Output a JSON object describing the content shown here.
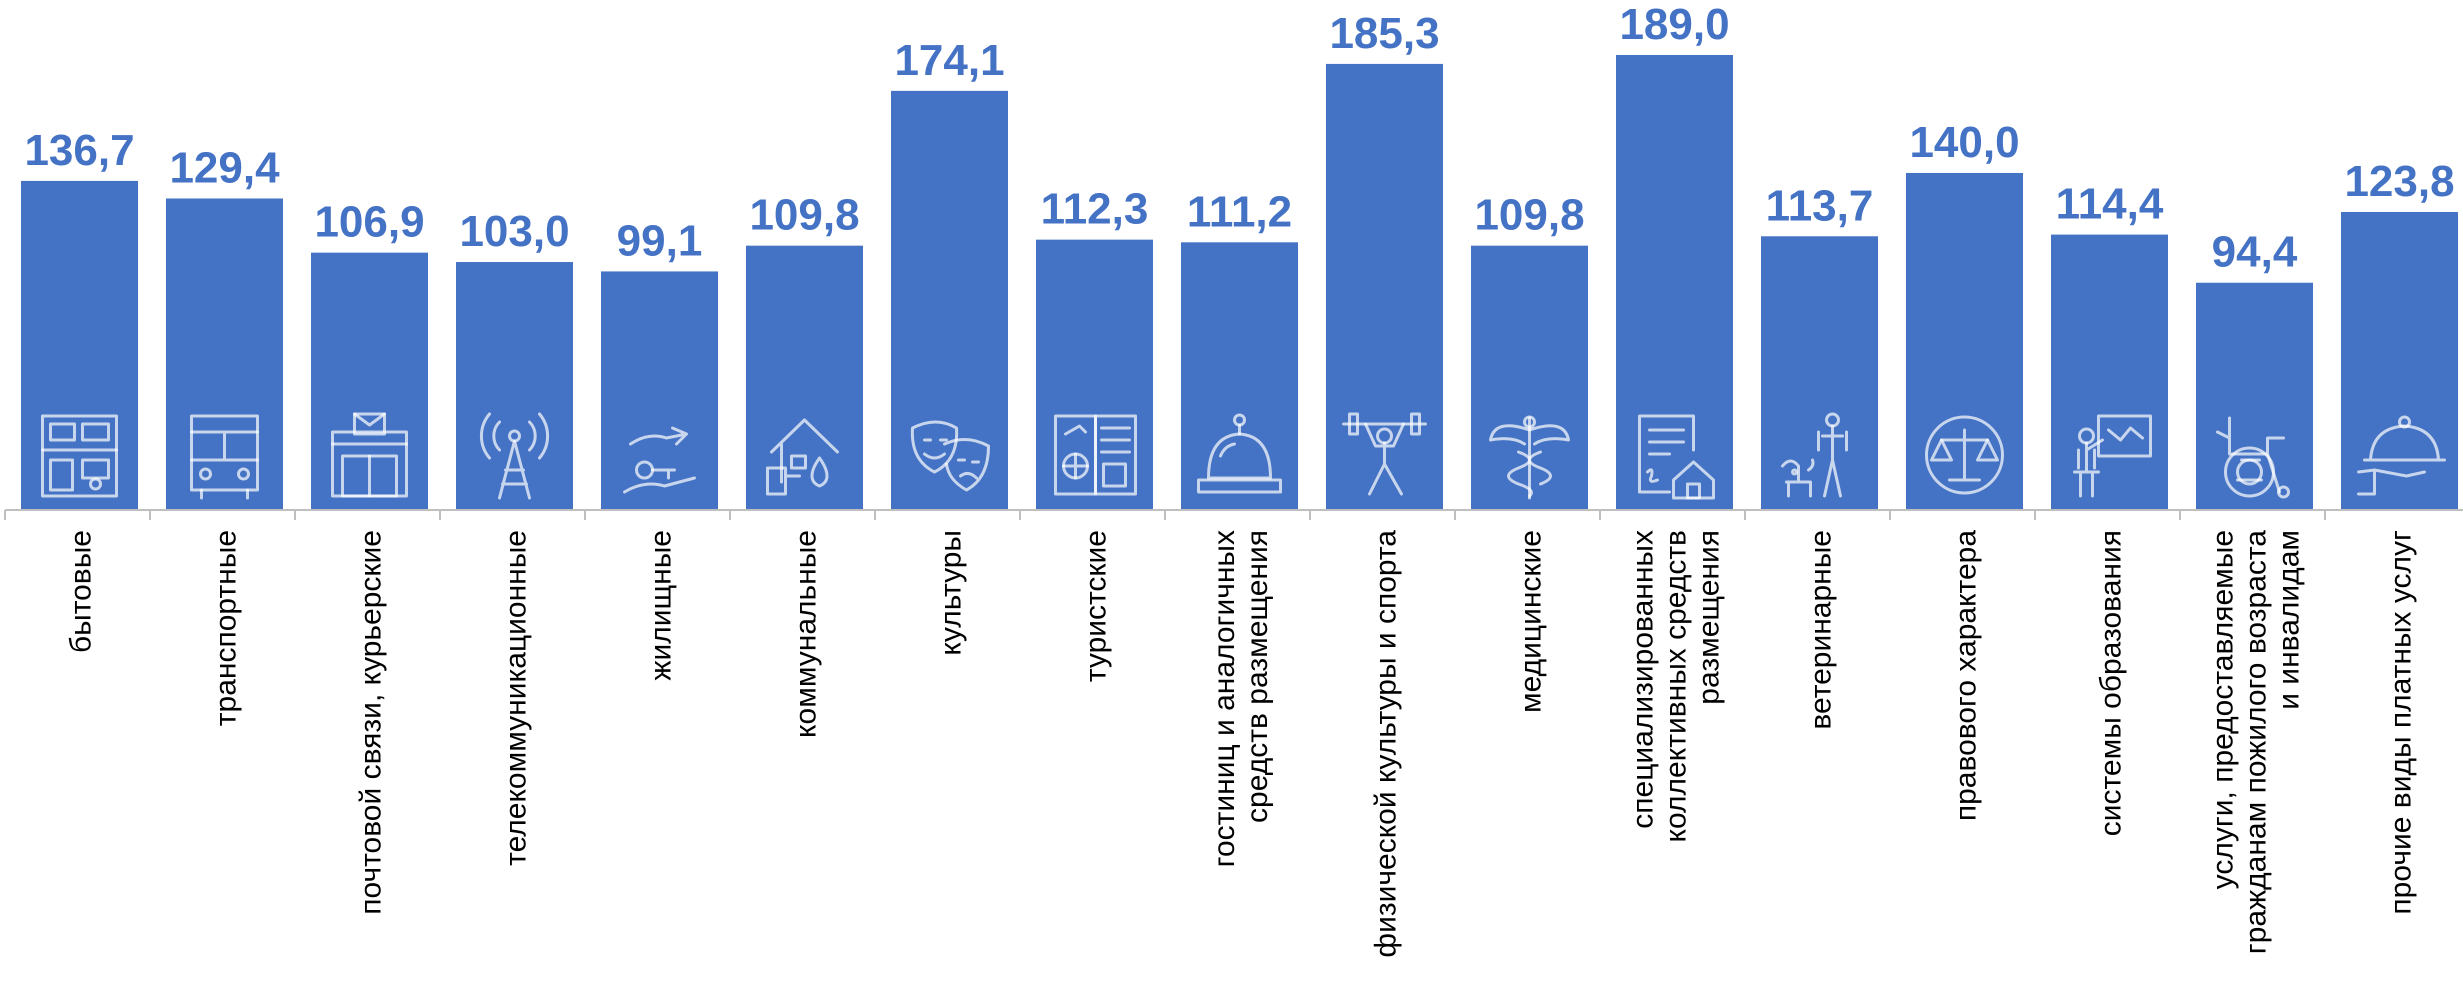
{
  "chart_data": {
    "type": "bar",
    "title": "",
    "xlabel": "",
    "ylabel": "",
    "ylim": [
      0,
      189
    ],
    "grid": false,
    "legend": "none",
    "bar_color": "#4472C4",
    "label_color": "#4472C4",
    "categories": [
      [
        "бытовые"
      ],
      [
        "транспортные"
      ],
      [
        "почтовой связи, курьерские"
      ],
      [
        "телекоммуникационные"
      ],
      [
        "жилищные"
      ],
      [
        "коммунальные"
      ],
      [
        "культуры"
      ],
      [
        "туристские"
      ],
      [
        "гостиниц и аналогичных",
        "средств размещения"
      ],
      [
        "физической культуры и спорта"
      ],
      [
        "медицинские"
      ],
      [
        "специализированных",
        "коллективных средств",
        "размещения"
      ],
      [
        "ветеринарные"
      ],
      [
        "правового характера"
      ],
      [
        "системы образования"
      ],
      [
        "услуги, предоставляемые",
        "гражданам пожилого возраста",
        "и инвалидам"
      ],
      [
        "прочие виды платных услуг"
      ]
    ],
    "values": [
      136.7,
      129.4,
      106.9,
      103.0,
      99.1,
      109.8,
      174.1,
      112.3,
      111.2,
      185.3,
      109.8,
      189.0,
      113.7,
      140.0,
      114.4,
      94.4,
      123.8
    ],
    "value_labels": [
      "136,7",
      "129,4",
      "106,9",
      "103,0",
      "99,1",
      "109,8",
      "174,1",
      "112,3",
      "111,2",
      "185,3",
      "109,8",
      "189,0",
      "113,7",
      "140,0",
      "114,4",
      "94,4",
      "123,8"
    ],
    "icons": [
      "household-services-icon",
      "bus-icon",
      "post-office-icon",
      "radio-tower-icon",
      "house-key-hands-icon",
      "house-utilities-icon",
      "theater-masks-icon",
      "travel-passport-icon",
      "reception-bell-icon",
      "weightlifter-icon",
      "caduceus-icon",
      "contract-house-icon",
      "veterinarian-dog-icon",
      "scales-of-justice-icon",
      "teacher-blackboard-icon",
      "wheelchair-icon",
      "serving-cloche-icon"
    ]
  }
}
